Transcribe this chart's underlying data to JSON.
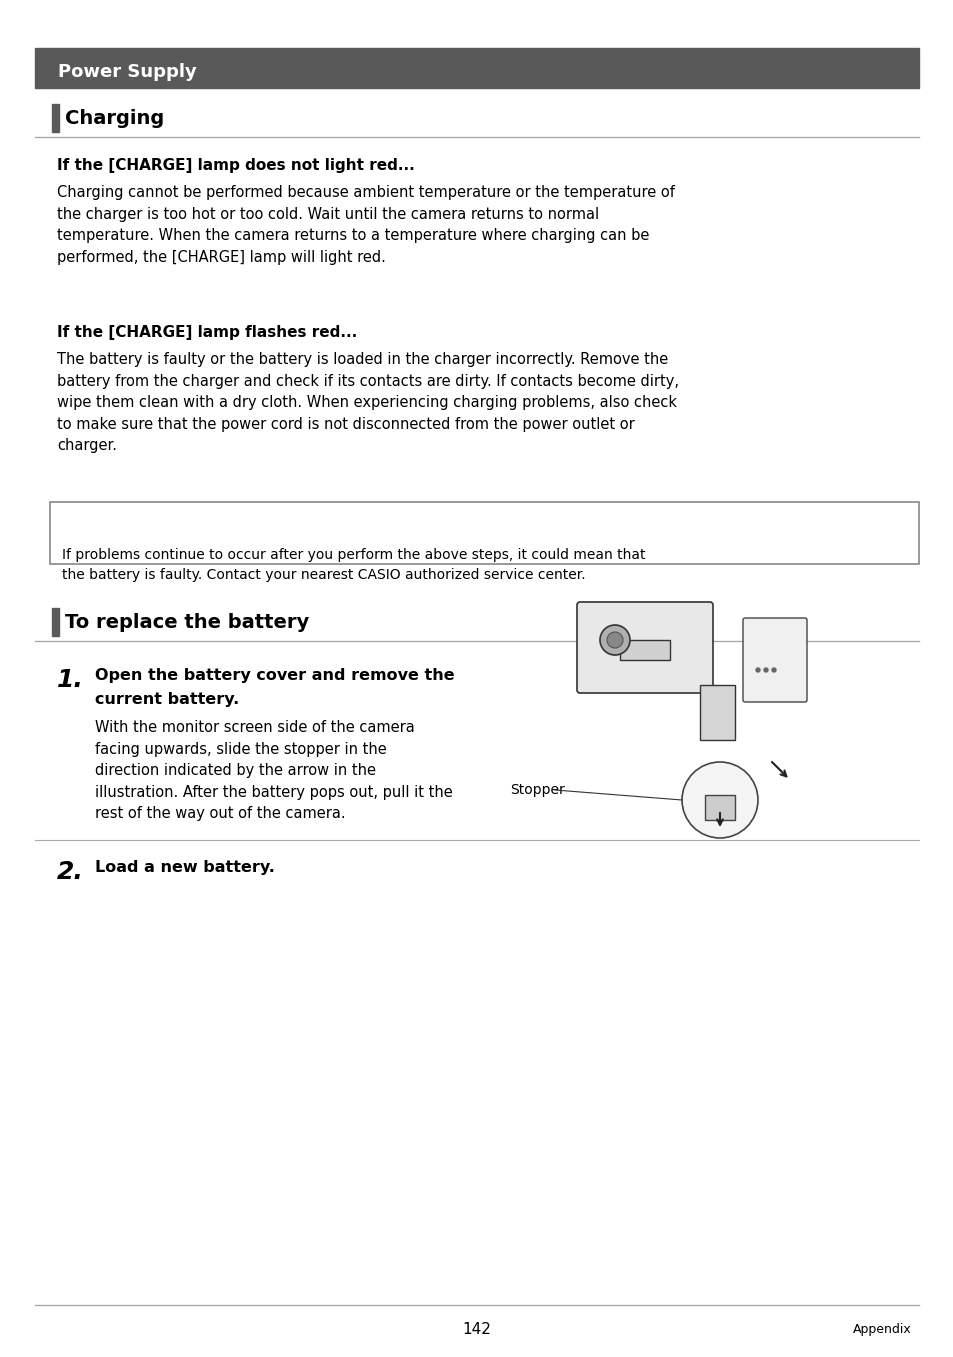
{
  "page_bg": "#ffffff",
  "header_bg": "#595959",
  "header_text": "Power Supply",
  "header_text_color": "#ffffff",
  "section1_title": "Charging",
  "section_bar_color": "#595959",
  "sub1_title": "If the [CHARGE] lamp does not light red...",
  "sub1_body": "Charging cannot be performed because ambient temperature or the temperature of\nthe charger is too hot or too cold. Wait until the camera returns to normal\ntemperature. When the camera returns to a temperature where charging can be\nperformed, the [CHARGE] lamp will light red.",
  "sub2_title": "If the [CHARGE] lamp flashes red...",
  "sub2_body": "The battery is faulty or the battery is loaded in the charger incorrectly. Remove the\nbattery from the charger and check if its contacts are dirty. If contacts become dirty,\nwipe them clean with a dry cloth. When experiencing charging problems, also check\nto make sure that the power cord is not disconnected from the power outlet or\ncharger.",
  "note_text": "If problems continue to occur after you perform the above steps, it could mean that\nthe battery is faulty. Contact your nearest CASIO authorized service center.",
  "section2_title": "To replace the battery",
  "step1_title_line1": "Open the battery cover and remove the",
  "step1_title_line2": "current battery.",
  "step1_body": "With the monitor screen side of the camera\nfacing upwards, slide the stopper in the\ndirection indicated by the arrow in the\nillustration. After the battery pops out, pull it the\nrest of the way out of the camera.",
  "step1_label": "Stopper",
  "step2_title": "Load a new battery.",
  "footer_page": "142",
  "footer_appendix": "Appendix",
  "line_color": "#aaaaaa",
  "dark_line_color": "#888888"
}
